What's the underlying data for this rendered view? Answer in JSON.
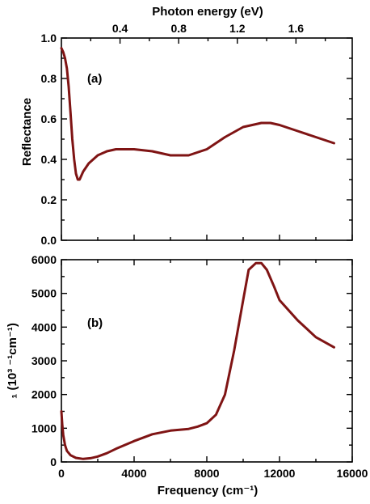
{
  "colors": {
    "series": "#7f1414",
    "axis": "#000000"
  },
  "chart_data": [
    {
      "type": "line",
      "panel_label": "(a)",
      "ylabel": "Reflectance",
      "top_xlabel": "Photon energy (eV)",
      "xlim": [
        0,
        16000
      ],
      "ylim": [
        0,
        1.0
      ],
      "y_ticks": [
        "0.0",
        "0.2",
        "0.4",
        "0.6",
        "0.8",
        "1.0"
      ],
      "top_x_ticks": [
        "0.4",
        "0.8",
        "1.2",
        "1.6"
      ],
      "top_x_tick_values_ev": [
        0.4,
        0.8,
        1.2,
        1.6
      ],
      "grid": false,
      "series": [
        {
          "x": [
            0,
            100,
            200,
            300,
            400,
            500,
            600,
            700,
            800,
            900,
            1000,
            1200,
            1500,
            2000,
            2500,
            3000,
            3500,
            4000,
            5000,
            6000,
            7000,
            8000,
            9000,
            10000,
            10500,
            11000,
            11500,
            12000,
            13000,
            14000,
            15000
          ],
          "y": [
            0.95,
            0.93,
            0.9,
            0.85,
            0.76,
            0.63,
            0.5,
            0.4,
            0.33,
            0.3,
            0.3,
            0.34,
            0.38,
            0.42,
            0.44,
            0.45,
            0.45,
            0.45,
            0.44,
            0.42,
            0.42,
            0.45,
            0.51,
            0.56,
            0.57,
            0.58,
            0.58,
            0.57,
            0.54,
            0.51,
            0.48
          ]
        }
      ]
    },
    {
      "type": "line",
      "panel_label": "(b)",
      "ylabel": "₁ (10³ ⁻¹cm⁻¹)",
      "xlabel": "Frequency (cm⁻¹)",
      "xlim": [
        0,
        16000
      ],
      "ylim": [
        0,
        6000
      ],
      "x_ticks": [
        "0",
        "4000",
        "8000",
        "12000",
        "16000"
      ],
      "y_ticks": [
        "0",
        "1000",
        "2000",
        "3000",
        "4000",
        "5000",
        "6000"
      ],
      "grid": false,
      "series": [
        {
          "x": [
            0,
            50,
            100,
            200,
            300,
            500,
            800,
            1200,
            1600,
            2000,
            2500,
            3000,
            4000,
            5000,
            6000,
            7000,
            7500,
            8000,
            8500,
            9000,
            9500,
            10000,
            10300,
            10700,
            11000,
            11300,
            11700,
            12000,
            13000,
            14000,
            15000
          ],
          "y": [
            1500,
            1100,
            800,
            500,
            330,
            200,
            120,
            90,
            110,
            160,
            260,
            390,
            620,
            820,
            930,
            980,
            1050,
            1150,
            1400,
            2000,
            3300,
            4800,
            5700,
            5900,
            5900,
            5700,
            5200,
            4800,
            4200,
            3700,
            3400
          ]
        }
      ]
    }
  ]
}
